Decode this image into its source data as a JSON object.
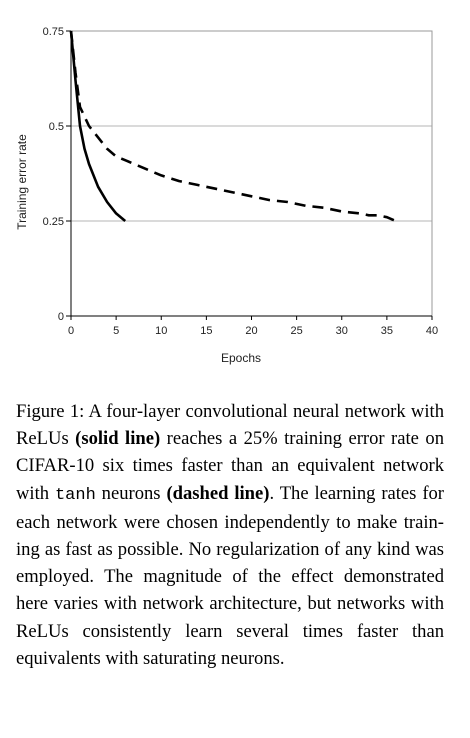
{
  "chart_data": {
    "type": "line",
    "xlabel": "Epochs",
    "ylabel": "Training error rate",
    "xlim": [
      0,
      40
    ],
    "ylim": [
      0,
      0.75
    ],
    "x_ticks": [
      "0",
      "5",
      "10",
      "15",
      "20",
      "25",
      "30",
      "35",
      "40"
    ],
    "y_ticks": [
      "0",
      "0.25",
      "0.5",
      "0.75"
    ],
    "grid": "horizontal",
    "series": [
      {
        "style": "solid",
        "color": "#000000",
        "x": [
          0,
          0.5,
          1,
          1.5,
          2,
          3,
          4,
          5,
          6
        ],
        "y": [
          0.75,
          0.62,
          0.5,
          0.44,
          0.4,
          0.34,
          0.3,
          0.27,
          0.25
        ]
      },
      {
        "style": "dashed",
        "color": "#000000",
        "x": [
          0,
          0.5,
          1,
          2,
          3,
          4,
          5,
          6,
          7,
          8,
          9,
          10,
          12,
          14,
          16,
          18,
          20,
          22,
          24,
          26,
          28,
          30,
          32,
          33,
          34,
          35,
          36
        ],
        "y": [
          0.75,
          0.64,
          0.55,
          0.5,
          0.47,
          0.44,
          0.42,
          0.41,
          0.4,
          0.39,
          0.38,
          0.37,
          0.355,
          0.345,
          0.335,
          0.325,
          0.315,
          0.305,
          0.3,
          0.29,
          0.285,
          0.275,
          0.27,
          0.265,
          0.265,
          0.26,
          0.25
        ]
      }
    ]
  },
  "caption": {
    "label": "Figure 1:",
    "t1": " A four-layer convolutional neural network with ReLUs ",
    "b1": "(solid line)",
    "t2": " reaches a 25% training error rate on CIFAR-10 six times faster than an equivalent network with ",
    "code": "tanh",
    "t3": " neurons ",
    "b2": "(dashed line)",
    "t4": ". The learning rates for each net­work were chosen independently to make train­ing as fast as possible. No regularization of any kind was employed. The magnitude of the effect demonstrated here varies with network architecture, but networks with ReLUs consis­tently learn several times faster than equivalents with saturating neurons."
  }
}
